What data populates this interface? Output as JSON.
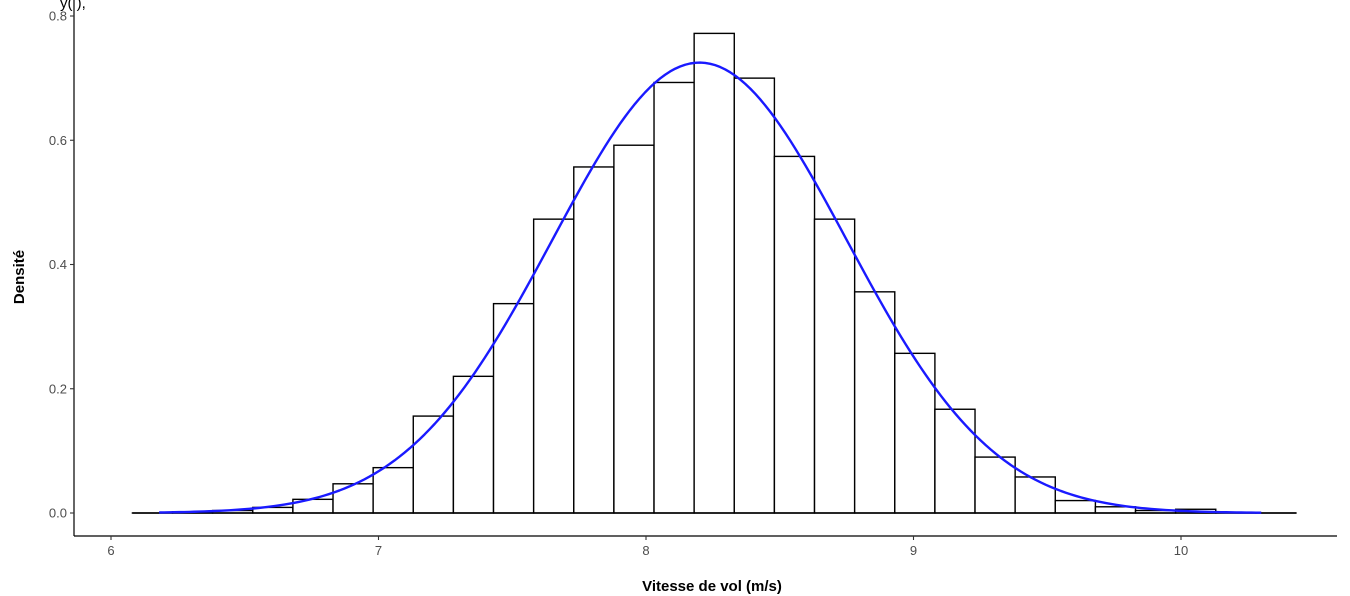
{
  "chart_data": {
    "type": "bar",
    "subtype": "histogram-with-density-curve",
    "title": "",
    "title_partial_visible": "y(          ),",
    "xlabel": "Vitesse de vol (m/s)",
    "ylabel": "Densité",
    "xlim": [
      6.0,
      10.5
    ],
    "ylim": [
      0.0,
      0.8
    ],
    "x_ticks": [
      6,
      7,
      8,
      9,
      10
    ],
    "x_tick_labels": [
      "6",
      "7",
      "8",
      "9",
      "10"
    ],
    "y_ticks": [
      0.0,
      0.2,
      0.4,
      0.6,
      0.8
    ],
    "y_tick_labels": [
      "0.0",
      "0.2",
      "0.4",
      "0.6",
      "0.8"
    ],
    "grid": false,
    "legend": "none",
    "bins": [
      {
        "x0": 6.08,
        "x1": 6.23,
        "density": 0.0
      },
      {
        "x0": 6.23,
        "x1": 6.38,
        "density": 0.002
      },
      {
        "x0": 6.38,
        "x1": 6.53,
        "density": 0.004
      },
      {
        "x0": 6.53,
        "x1": 6.68,
        "density": 0.009
      },
      {
        "x0": 6.68,
        "x1": 6.83,
        "density": 0.022
      },
      {
        "x0": 6.83,
        "x1": 6.98,
        "density": 0.047
      },
      {
        "x0": 6.98,
        "x1": 7.13,
        "density": 0.073
      },
      {
        "x0": 7.13,
        "x1": 7.28,
        "density": 0.156
      },
      {
        "x0": 7.28,
        "x1": 7.43,
        "density": 0.22
      },
      {
        "x0": 7.43,
        "x1": 7.58,
        "density": 0.337
      },
      {
        "x0": 7.58,
        "x1": 7.73,
        "density": 0.473
      },
      {
        "x0": 7.73,
        "x1": 7.88,
        "density": 0.557
      },
      {
        "x0": 7.88,
        "x1": 8.03,
        "density": 0.592
      },
      {
        "x0": 8.03,
        "x1": 8.18,
        "density": 0.693
      },
      {
        "x0": 8.18,
        "x1": 8.33,
        "density": 0.772
      },
      {
        "x0": 8.33,
        "x1": 8.48,
        "density": 0.7
      },
      {
        "x0": 8.48,
        "x1": 8.63,
        "density": 0.574
      },
      {
        "x0": 8.63,
        "x1": 8.78,
        "density": 0.473
      },
      {
        "x0": 8.78,
        "x1": 8.93,
        "density": 0.356
      },
      {
        "x0": 8.93,
        "x1": 9.08,
        "density": 0.257
      },
      {
        "x0": 9.08,
        "x1": 9.23,
        "density": 0.167
      },
      {
        "x0": 9.23,
        "x1": 9.38,
        "density": 0.09
      },
      {
        "x0": 9.38,
        "x1": 9.53,
        "density": 0.058
      },
      {
        "x0": 9.53,
        "x1": 9.68,
        "density": 0.02
      },
      {
        "x0": 9.68,
        "x1": 9.83,
        "density": 0.01
      },
      {
        "x0": 9.83,
        "x1": 9.98,
        "density": 0.004
      },
      {
        "x0": 9.98,
        "x1": 10.13,
        "density": 0.006
      },
      {
        "x0": 10.13,
        "x1": 10.28,
        "density": 0.0
      },
      {
        "x0": 10.28,
        "x1": 10.43,
        "density": 0.0
      }
    ],
    "density_curve": {
      "distribution": "normal",
      "mean": 8.2,
      "sd": 0.55,
      "x_range": [
        6.18,
        10.3
      ],
      "peak": 0.725,
      "color": "#1a1aff"
    },
    "bar_fill": "#ffffff",
    "bar_outline": "#000000"
  }
}
